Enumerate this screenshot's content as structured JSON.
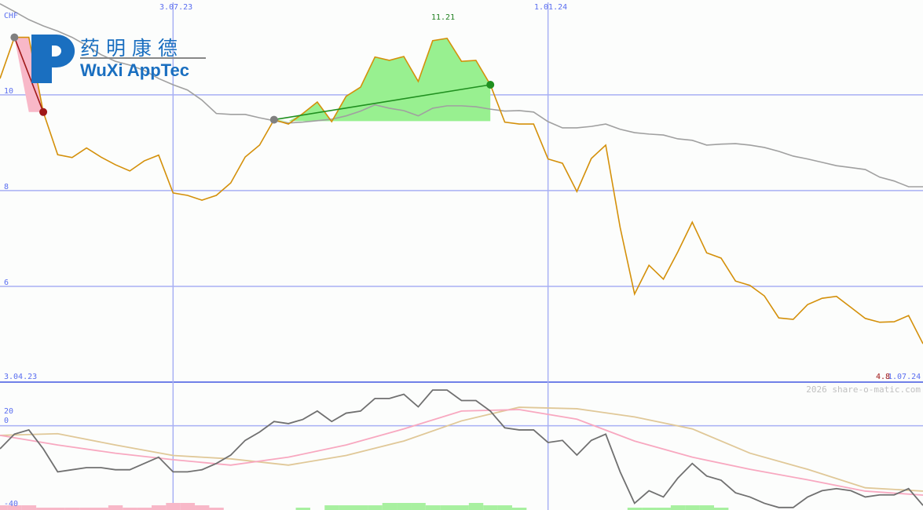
{
  "chart_data": [
    {
      "type": "line",
      "currency_label": "CHF",
      "x_tick_labels": [
        "3.04.23",
        "3.07.23",
        "1.01.24",
        "1.07.24"
      ],
      "x_tick_index": [
        0,
        12,
        38,
        64
      ],
      "y_ticks": [
        10,
        8,
        6
      ],
      "ylim": [
        4.0,
        11.98
      ],
      "grid": true,
      "max_label": "11.21",
      "last_label": "4.8",
      "series": [
        {
          "role": "price",
          "color": "#d4900a",
          "values": [
            10.34,
            11.2,
            11.2,
            9.64,
            8.75,
            8.69,
            8.89,
            8.7,
            8.54,
            8.41,
            8.62,
            8.74,
            7.95,
            7.9,
            7.8,
            7.9,
            8.16,
            8.7,
            8.95,
            9.48,
            9.39,
            9.61,
            9.85,
            9.44,
            9.97,
            10.16,
            10.79,
            10.72,
            10.8,
            10.28,
            11.13,
            11.18,
            10.7,
            10.72,
            10.21,
            9.43,
            9.39,
            9.39,
            8.66,
            8.57,
            7.98,
            8.67,
            8.95,
            7.23,
            5.84,
            6.44,
            6.15,
            6.72,
            7.34,
            6.7,
            6.59,
            6.11,
            6.02,
            5.8,
            5.34,
            5.31,
            5.62,
            5.75,
            5.79,
            5.56,
            5.33,
            5.25,
            5.26,
            5.39,
            4.8
          ]
        },
        {
          "role": "moving-average",
          "color": "#a0a0a0",
          "values": [
            11.9,
            11.74,
            11.57,
            11.44,
            11.33,
            11.2,
            11.03,
            10.84,
            10.7,
            10.62,
            10.51,
            10.34,
            10.21,
            10.1,
            9.89,
            9.61,
            9.59,
            9.59,
            9.52,
            9.46,
            9.41,
            9.43,
            9.46,
            9.49,
            9.56,
            9.66,
            9.79,
            9.72,
            9.67,
            9.56,
            9.72,
            9.77,
            9.77,
            9.75,
            9.7,
            9.66,
            9.67,
            9.64,
            9.44,
            9.31,
            9.31,
            9.34,
            9.39,
            9.28,
            9.21,
            9.18,
            9.16,
            9.08,
            9.05,
            8.95,
            8.97,
            8.98,
            8.95,
            8.9,
            8.82,
            8.72,
            8.66,
            8.59,
            8.52,
            8.48,
            8.44,
            8.28,
            8.2,
            8.08,
            8.08
          ]
        }
      ],
      "trend_lines": [
        {
          "from_index": 1,
          "to_index": 3,
          "color": "#a01818"
        },
        {
          "from_index": 19,
          "to_index": 34,
          "color": "#209020"
        }
      ]
    },
    {
      "type": "line",
      "y_ticks": [
        20,
        0,
        -40
      ],
      "ylim": [
        -40.2,
        20.8
      ],
      "series": [
        {
          "role": "oscillator",
          "color": "#707070",
          "values": [
            -11,
            -4,
            -2,
            -11,
            -22,
            -21,
            -20,
            -20,
            -21,
            -21,
            -18,
            -15,
            -22,
            -22,
            -21,
            -18,
            -14,
            -7,
            -3,
            2,
            1,
            3,
            7,
            2,
            6,
            7,
            13,
            13,
            15,
            9,
            17,
            17,
            12,
            12,
            7,
            -1,
            -2,
            -2,
            -8,
            -7,
            -14,
            -7,
            -4,
            -22,
            -37,
            -31,
            -34,
            -25,
            -18,
            -24,
            -26,
            -32,
            -34,
            -37,
            -39,
            -39,
            -34,
            -31,
            -30,
            -31,
            -34,
            -33,
            -33,
            -30,
            -38
          ]
        },
        {
          "role": "signal-fast",
          "color": "#f8a8c0",
          "step": 4,
          "values": [
            -4.6,
            -9.2,
            -13.1,
            -16.2,
            -18.8,
            -15,
            -9.2,
            -1.5,
            7,
            7.7,
            3.1,
            -7.3,
            -15,
            -20.8,
            -25.8,
            -31.2,
            -33.1
          ]
        },
        {
          "role": "signal-slow",
          "color": "#e0c898",
          "step": 4,
          "values": [
            -4.6,
            -3.8,
            -9.2,
            -14.2,
            -15.8,
            -18.8,
            -14.2,
            -7.3,
            2.3,
            8.8,
            8.1,
            4.2,
            -1.5,
            -13.1,
            -20.8,
            -29.6,
            -31.2
          ]
        }
      ],
      "volume_direction": [
        -1,
        -1,
        -1,
        -1,
        -1,
        -1,
        -1,
        -1,
        -1,
        -1,
        -1,
        -1,
        -1,
        -1,
        -1,
        -1,
        0,
        0,
        0,
        0,
        0,
        1,
        0,
        1,
        1,
        1,
        1,
        1,
        1,
        1,
        1,
        1,
        1,
        1,
        1,
        1,
        1,
        0,
        0,
        0,
        0,
        0,
        0,
        0,
        1,
        1,
        1,
        1,
        1,
        1,
        1,
        0,
        0,
        0,
        0,
        0,
        0,
        0,
        0,
        0,
        0,
        0,
        0,
        0,
        0
      ],
      "volume": [
        2,
        2,
        2,
        1,
        1,
        1,
        1,
        1,
        2,
        1,
        1,
        2,
        3,
        3,
        2,
        1,
        0,
        0,
        0,
        0,
        0,
        1,
        0,
        2,
        2,
        2,
        2,
        3,
        3,
        3,
        2,
        2,
        2,
        3,
        2,
        2,
        1,
        0,
        0,
        0,
        0,
        0,
        0,
        0,
        1,
        1,
        1,
        2,
        2,
        2,
        1,
        0,
        0,
        0,
        0,
        0,
        0,
        0,
        0,
        0,
        0,
        0,
        0,
        0,
        0
      ]
    }
  ],
  "logo": {
    "chinese": "药 明 康 德",
    "english": "WuXi AppTec",
    "color": "#1a6fc0"
  },
  "watermark": "2026 share-o-matic.com",
  "colors": {
    "grid": "#a8b0f4",
    "axis": "#7080e8",
    "label": "#5a6ef0",
    "max_label": "#208020",
    "last_label": "#a01818"
  }
}
